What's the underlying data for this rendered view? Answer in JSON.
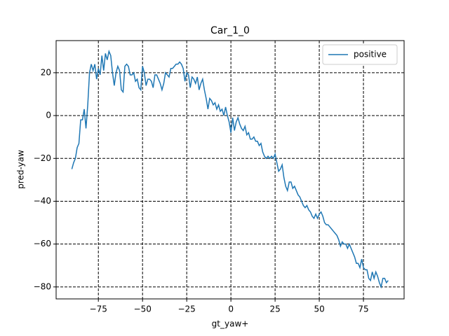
{
  "chart_data": {
    "type": "line",
    "title": "Car_1_0",
    "x_label": "gt_yaw+",
    "y_label": "pred-yaw",
    "x": [
      -90,
      -89,
      -88,
      -87,
      -86,
      -85,
      -84,
      -83,
      -82,
      -81,
      -80,
      -79,
      -78,
      -77,
      -76,
      -75,
      -74,
      -73,
      -72,
      -71,
      -70,
      -69,
      -68,
      -67,
      -66,
      -65,
      -64,
      -63,
      -62,
      -61,
      -60,
      -59,
      -58,
      -57,
      -56,
      -55,
      -54,
      -53,
      -52,
      -51,
      -50,
      -49,
      -48,
      -47,
      -46,
      -45,
      -44,
      -43,
      -42,
      -41,
      -40,
      -39,
      -38,
      -37,
      -36,
      -35,
      -34,
      -33,
      -32,
      -31,
      -30,
      -29,
      -28,
      -27,
      -26,
      -25,
      -24,
      -23,
      -22,
      -21,
      -20,
      -19,
      -18,
      -17,
      -16,
      -15,
      -14,
      -13,
      -12,
      -11,
      -10,
      -9,
      -8,
      -7,
      -6,
      -5,
      -4,
      -3,
      -2,
      -1,
      0,
      1,
      2,
      3,
      4,
      5,
      6,
      7,
      8,
      9,
      10,
      11,
      12,
      13,
      14,
      15,
      16,
      17,
      18,
      19,
      20,
      21,
      22,
      23,
      24,
      25,
      26,
      27,
      28,
      29,
      30,
      31,
      32,
      33,
      34,
      35,
      36,
      37,
      38,
      39,
      40,
      41,
      42,
      43,
      44,
      45,
      46,
      47,
      48,
      49,
      50,
      51,
      52,
      53,
      54,
      55,
      56,
      57,
      58,
      59,
      60,
      61,
      62,
      63,
      64,
      65,
      66,
      67,
      68,
      69,
      70,
      71,
      72,
      73,
      74,
      75,
      76,
      77,
      78,
      79,
      80,
      81,
      82,
      83,
      84,
      85,
      86,
      87,
      88,
      89
    ],
    "series": [
      {
        "name": "positive",
        "color": "#1f77b4",
        "values": [
          -25,
          -22,
          -20,
          -15,
          -13,
          -2,
          -2,
          3,
          -6,
          5,
          20,
          24,
          21,
          24,
          17,
          22,
          19,
          28,
          21,
          29,
          26,
          30,
          28,
          20,
          14,
          20,
          23,
          21,
          12,
          11,
          23,
          24,
          23,
          19,
          19,
          20,
          16,
          17,
          13,
          12,
          23,
          20,
          14,
          17,
          17,
          16,
          13,
          19,
          19,
          17,
          15,
          12,
          15,
          20,
          19,
          18,
          22,
          22,
          23,
          24,
          24,
          25,
          24,
          22,
          16,
          20,
          19,
          13,
          18,
          17,
          15,
          18,
          12,
          15,
          17,
          12,
          8,
          3,
          8,
          7,
          5,
          6,
          3,
          5,
          2,
          3,
          0,
          4,
          0,
          -3,
          -8,
          -1,
          -7,
          -3,
          -1,
          -4,
          -6,
          -7,
          -5,
          -9,
          -8,
          -11,
          -11,
          -10,
          -12,
          -12,
          -14,
          -13,
          -17,
          -19,
          -20,
          -19,
          -20,
          -19,
          -20,
          -18,
          -22,
          -26,
          -25,
          -23,
          -29,
          -33,
          -35,
          -31,
          -31,
          -34,
          -33,
          -35,
          -37,
          -38,
          -40,
          -42,
          -43,
          -42,
          -44,
          -45,
          -47,
          -48,
          -46,
          -48,
          -46,
          -45,
          -47,
          -50,
          -51,
          -51,
          -52,
          -53,
          -54,
          -55,
          -56,
          -58,
          -61,
          -59,
          -60,
          -60,
          -62,
          -60,
          -62,
          -64,
          -66,
          -69,
          -69,
          -71,
          -67,
          -71,
          -72,
          -72,
          -76,
          -77,
          -73,
          -76,
          -73,
          -75,
          -78,
          -80,
          -76,
          -76,
          -78,
          -77
        ]
      }
    ],
    "xlim": [
      -98.9,
      98.0
    ],
    "ylim": [
      -85.6,
      35
    ],
    "xticks": [
      {
        "value": -75,
        "label": "−75"
      },
      {
        "value": -50,
        "label": "−50"
      },
      {
        "value": -25,
        "label": "−25"
      },
      0,
      25,
      50,
      75
    ],
    "yticks": [
      {
        "value": -80,
        "label": "−80"
      },
      {
        "value": -60,
        "label": "−60"
      },
      {
        "value": -40,
        "label": "−40"
      },
      {
        "value": -20,
        "label": "−20"
      },
      0,
      20
    ],
    "grid": true,
    "legend": "upper right"
  }
}
